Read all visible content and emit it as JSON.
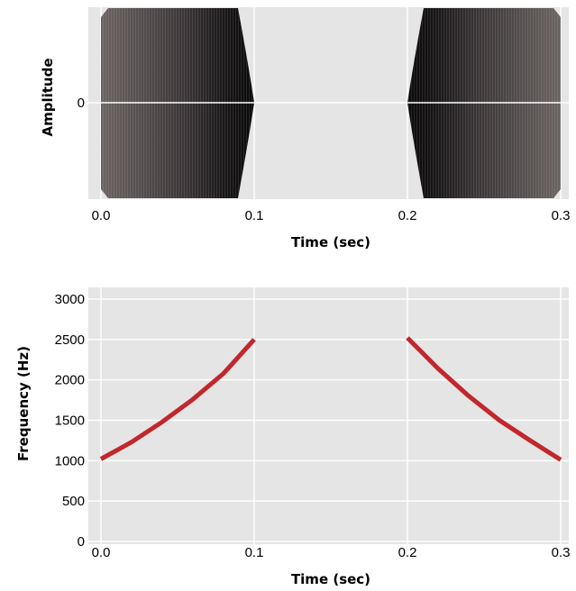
{
  "colors": {
    "panel_bg": "#e5e5e5",
    "grid": "#ffffff",
    "waveform": "#2b2b2b",
    "frequency_line": "#c1272d"
  },
  "chart_data": [
    {
      "type": "area",
      "title": "",
      "xlabel": "Time (sec)",
      "ylabel": "Amplitude",
      "xlim": [
        0.0,
        0.3
      ],
      "x_ticks": [
        "0.0",
        "0.1",
        "0.2",
        "0.3"
      ],
      "y_ticks": [
        "0"
      ],
      "grid": true,
      "series": [
        {
          "x": [
            0.0,
            0.1
          ],
          "amplitude_envelope": [
            1,
            1
          ],
          "description_color": "dark gray"
        },
        {
          "x": [
            0.2,
            0.3
          ],
          "amplitude_envelope": [
            1,
            1
          ]
        }
      ]
    },
    {
      "type": "line",
      "title": "",
      "xlabel": "Time (sec)",
      "ylabel": "Frequency (Hz)",
      "xlim": [
        0.0,
        0.3
      ],
      "ylim": [
        0,
        3000
      ],
      "x_ticks": [
        "0.0",
        "0.1",
        "0.2",
        "0.3"
      ],
      "y_ticks": [
        "0",
        "500",
        "1000",
        "1500",
        "2000",
        "2500",
        "3000"
      ],
      "grid": true,
      "series": [
        {
          "x": [
            0.0,
            0.02,
            0.04,
            0.06,
            0.08,
            0.1
          ],
          "y": [
            1020,
            1230,
            1480,
            1760,
            2080,
            2500
          ]
        },
        {
          "x": [
            0.2,
            0.22,
            0.24,
            0.26,
            0.28,
            0.3
          ],
          "y": [
            2520,
            2140,
            1800,
            1500,
            1250,
            1010
          ]
        }
      ]
    }
  ]
}
